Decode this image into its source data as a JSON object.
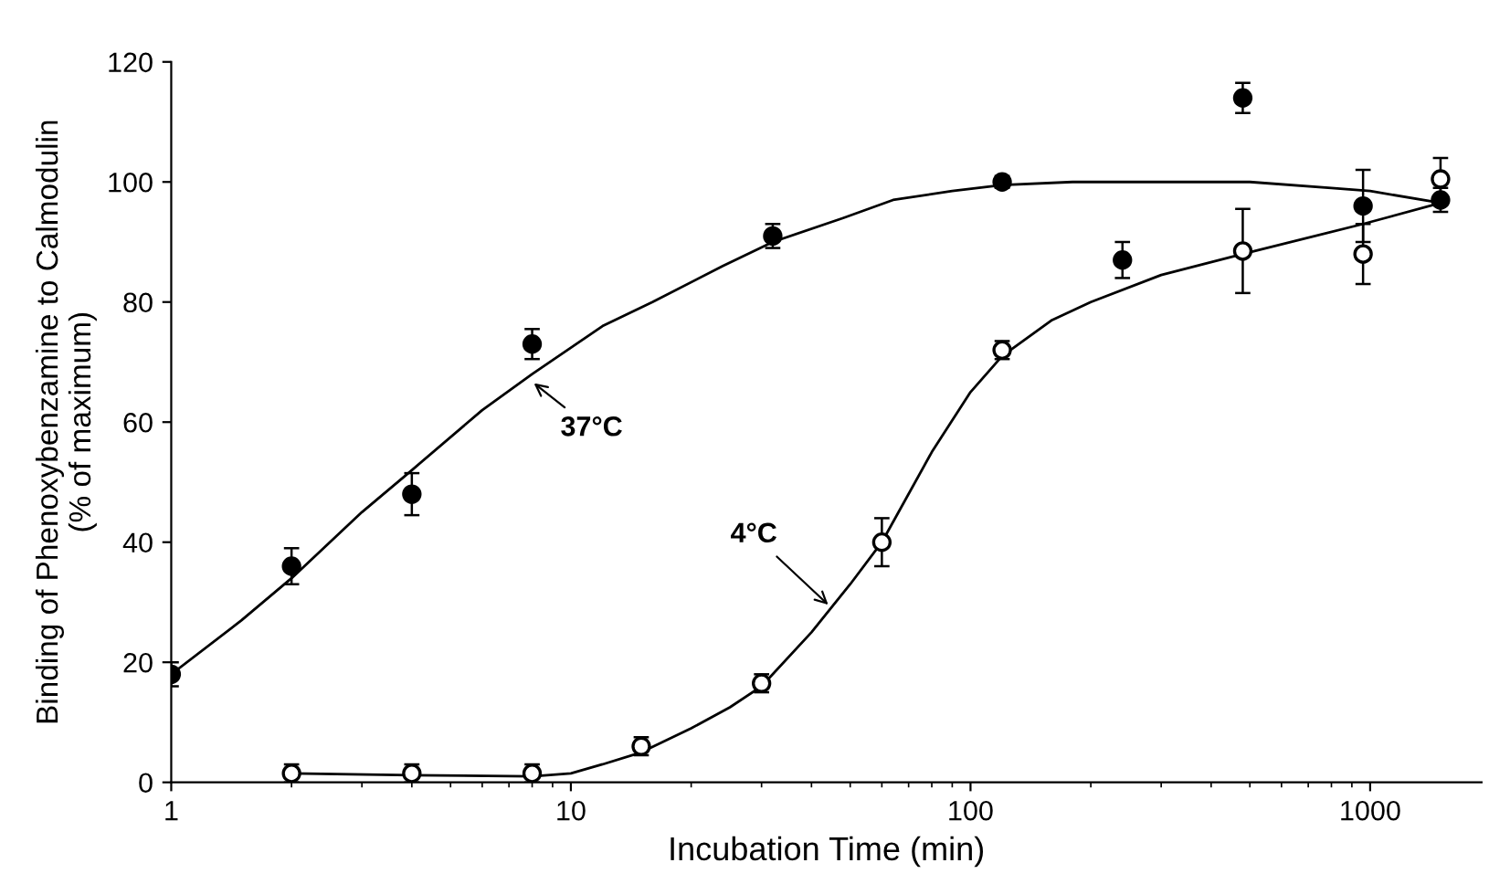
{
  "chart_data": {
    "type": "scatter",
    "xlabel": "Incubation Time (min)",
    "ylabel": "Binding of Phenoxybenzamine to Calmodulin\n(% of maximum)",
    "log": "x",
    "xlim": [
      1,
      1900
    ],
    "xticks": [
      1,
      10,
      100,
      1000
    ],
    "ylim": [
      0,
      120
    ],
    "yticks": [
      0,
      20,
      40,
      60,
      80,
      100,
      120
    ],
    "grid": false,
    "legend": false,
    "series": [
      {
        "marker": "circle",
        "color": "#000000",
        "x": [
          1,
          2,
          4,
          8,
          32,
          120,
          240,
          480,
          960,
          1500
        ],
        "values": [
          18,
          36,
          48,
          73,
          91,
          100,
          87,
          114,
          96,
          97
        ],
        "errors": [
          2,
          3,
          3.5,
          2.5,
          2,
          1,
          3,
          2.5,
          6,
          2
        ]
      },
      {
        "marker": "circle",
        "color": "#ffffff",
        "x": [
          2,
          4,
          8,
          15,
          30,
          60,
          120,
          480,
          960,
          1500
        ],
        "values": [
          1.5,
          1.5,
          1.5,
          6,
          16.5,
          40,
          72,
          88.5,
          88,
          100.5
        ],
        "errors": [
          1.5,
          1.5,
          1.5,
          1.5,
          1.5,
          4,
          1.5,
          7,
          5,
          3.5
        ]
      },
      {
        "type": "line",
        "color": "#000000",
        "line_style": "solid",
        "x": [
          1,
          1.5,
          2,
          3,
          4,
          6,
          8,
          12,
          16,
          24,
          32,
          48,
          64,
          90,
          120,
          180,
          250,
          400,
          500,
          800,
          1000,
          1500
        ],
        "values": [
          18,
          27,
          34,
          45,
          52,
          62,
          68,
          76,
          80,
          86,
          90,
          94,
          97,
          98.5,
          99.5,
          100,
          100,
          100,
          100,
          99,
          98.5,
          96.5
        ]
      },
      {
        "type": "line",
        "color": "#000000",
        "line_style": "solid",
        "x": [
          2,
          4,
          8,
          10,
          12,
          15,
          20,
          25,
          30,
          40,
          50,
          60,
          80,
          100,
          120,
          160,
          200,
          300,
          480,
          960,
          1500
        ],
        "values": [
          1.5,
          1.2,
          1,
          1.5,
          3,
          5,
          9,
          12.5,
          16,
          25,
          33,
          40,
          55,
          65,
          71,
          77,
          80,
          84.5,
          88,
          93,
          96.5
        ]
      }
    ],
    "annotations": [
      {
        "text": "37°C",
        "x": 7.9,
        "y": 67
      },
      {
        "text": "4°C",
        "x": 45,
        "y": 29
      }
    ]
  }
}
